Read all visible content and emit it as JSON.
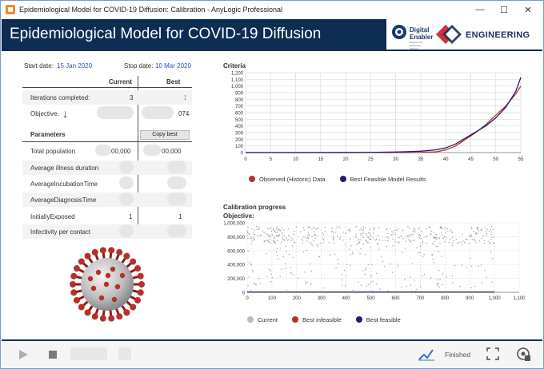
{
  "window": {
    "title": "Epidemiological Model for COVID-19 Diffusion: Calibration - AnyLogic Professional",
    "controls": [
      "—",
      "☐",
      "✕"
    ]
  },
  "banner": {
    "title": "Epidemiological Model for COVID-19 Diffusion",
    "logo1_line1": "Digital",
    "logo1_line2": "Enabler",
    "logo1_sub": "Engineering Ecosystem Platform",
    "logo2": "ENGINEERING"
  },
  "dates": {
    "start_label": "Start date:",
    "start_value": "15 Jan 2020",
    "stop_label": "Stop date:",
    "stop_value": "10 Mar 2020"
  },
  "table": {
    "col_current": "Current",
    "col_best": "Best",
    "iterations_label": "Iterations completed:",
    "iterations_current": "3",
    "iterations_best": "1",
    "objective_label": "Objective:",
    "objective_arrow": "↓",
    "objective_best": "074",
    "parameters_label": "Parameters",
    "copy_best": "Copy best",
    "params": [
      {
        "name": "Total population",
        "current": "00,000",
        "best": "00,000"
      },
      {
        "name": "Average illness duration",
        "current": "",
        "best": ""
      },
      {
        "name": "AverageIncubationTime",
        "current": "",
        "best": ""
      },
      {
        "name": "AverageDiagnosisTime",
        "current": "",
        "best": ""
      },
      {
        "name": "InitiallyExposed",
        "current": "1",
        "best": "1"
      },
      {
        "name": "Infectivity per contact",
        "current": "",
        "best": ""
      }
    ]
  },
  "criteria": {
    "title": "Criteria",
    "legend_observed": "Observed (Historic) Data",
    "legend_best": "Best Feasible Model Results"
  },
  "progress": {
    "title": "Calibration progress",
    "subtitle": "Objective:",
    "legend_current": "Current",
    "legend_infeasible": "Best infeasible",
    "legend_feasible": "Best feasible"
  },
  "colors": {
    "navy": "#0d2d52",
    "observed": "#b5312a",
    "best_feasible": "#1d1f6e",
    "current": "#bbbbbb",
    "link_blue": "#2f4fbf"
  },
  "footer": {
    "status": "Finished"
  },
  "chart_data": [
    {
      "type": "line",
      "title": "Criteria",
      "xlim": [
        0,
        55
      ],
      "ylim": [
        0,
        1200
      ],
      "xticks": [
        0,
        5,
        10,
        15,
        20,
        25,
        30,
        35,
        40,
        45,
        50,
        55
      ],
      "yticks": [
        "0",
        "100",
        "200",
        "300",
        "400",
        "500",
        "600",
        "700",
        "800",
        "900",
        "1,000",
        "1,100",
        "1,200"
      ],
      "series": [
        {
          "name": "Observed (Historic) Data",
          "x": [
            0,
            10,
            20,
            30,
            35,
            38,
            40,
            42,
            44,
            46,
            48,
            50,
            52,
            54,
            55
          ],
          "y": [
            0,
            0,
            0,
            0,
            2,
            10,
            40,
            100,
            200,
            300,
            420,
            560,
            700,
            880,
            1000
          ]
        },
        {
          "name": "Best Feasible Model Results",
          "x": [
            0,
            10,
            20,
            25,
            30,
            35,
            38,
            40,
            42,
            44,
            46,
            48,
            50,
            52,
            54,
            55
          ],
          "y": [
            0,
            0,
            1,
            3,
            8,
            20,
            40,
            70,
            130,
            220,
            310,
            400,
            520,
            680,
            920,
            1130
          ]
        }
      ]
    },
    {
      "type": "scatter",
      "title": "Calibration progress",
      "xlim": [
        0,
        1100
      ],
      "ylim": [
        0,
        1000000
      ],
      "xticks": [
        "0",
        "100",
        "200",
        "300",
        "400",
        "500",
        "600",
        "700",
        "800",
        "900",
        "1,000",
        "1,100"
      ],
      "yticks": [
        "0",
        "200,000",
        "400,000",
        "600,000",
        "800,000",
        "1,000,000"
      ],
      "series": [
        {
          "name": "Current",
          "note": "~1000 iterations scattered between 0 and 950,000"
        },
        {
          "name": "Best feasible",
          "x": [
            0,
            1000
          ],
          "y": [
            4000,
            4000
          ]
        }
      ]
    }
  ]
}
